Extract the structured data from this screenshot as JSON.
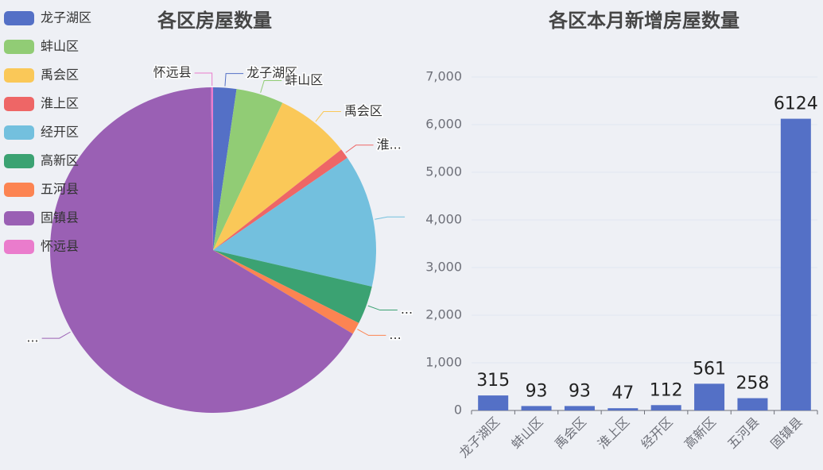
{
  "chart_data": [
    {
      "type": "pie",
      "title": "各区房屋数量",
      "categories": [
        "龙子湖区",
        "蚌山区",
        "禹会区",
        "淮上区",
        "经开区",
        "高新区",
        "五河县",
        "固镇县",
        "怀远县"
      ],
      "values": [
        2.3,
        4.7,
        7.4,
        1.0,
        13.2,
        3.8,
        1.2,
        66.2,
        0.2
      ],
      "slice_labels": [
        "龙子湖区",
        "蚌山区",
        "禹会区",
        "淮...",
        null,
        "...",
        "...",
        "...",
        "怀远县"
      ],
      "colors": [
        "#5470c6",
        "#91cc75",
        "#fac858",
        "#ee6666",
        "#73c0de",
        "#3ba272",
        "#fc8452",
        "#9a60b4",
        "#ea7ccc"
      ],
      "legend": "top-left"
    },
    {
      "type": "bar",
      "title": "各区本月新增房屋数量",
      "categories": [
        "龙子湖区",
        "蚌山区",
        "禹会区",
        "淮上区",
        "经开区",
        "高新区",
        "五河县",
        "固镇县"
      ],
      "values": [
        315,
        93,
        93,
        47,
        112,
        561,
        258,
        6124
      ],
      "color": "#5470c6",
      "ylim": [
        0,
        7000
      ],
      "yticks": [
        0,
        {
          "value": 1000,
          "label": "1,000"
        },
        {
          "value": 2000,
          "label": "2,000"
        },
        {
          "value": 3000,
          "label": "3,000"
        },
        {
          "value": 4000,
          "label": "4,000"
        },
        {
          "value": 5000,
          "label": "5,000"
        },
        {
          "value": 6000,
          "label": "6,000"
        },
        {
          "value": 7000,
          "label": "7,000"
        }
      ],
      "grid": true
    }
  ]
}
